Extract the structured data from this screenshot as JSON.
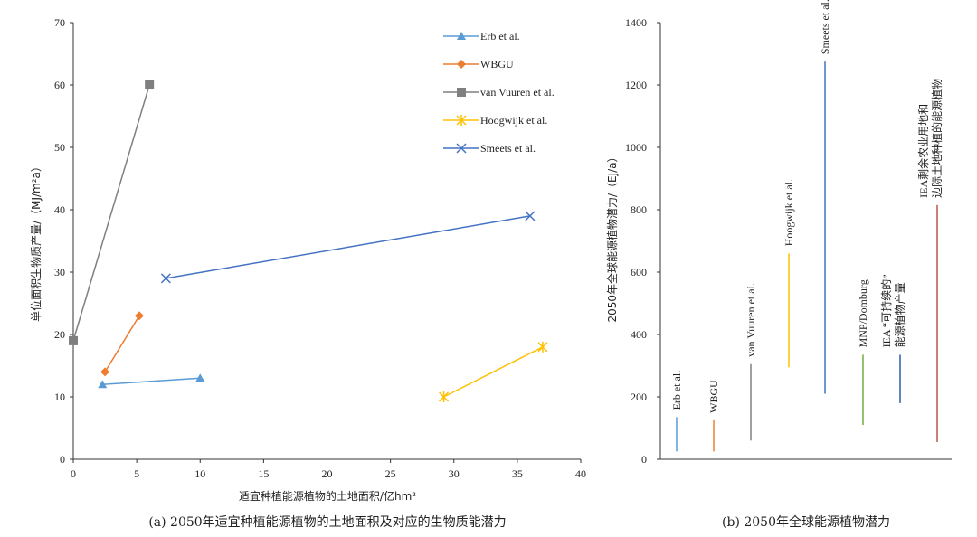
{
  "chart_data": [
    {
      "type": "line",
      "caption": "(a) 2050年适宜种植能源植物的土地面积及对应的生物质能潜力",
      "xlabel": "适宜种植能源植物的土地面积/亿hm²",
      "ylabel": "单位面积生物质产量/（MJ/m²a）",
      "xlim": [
        0,
        40
      ],
      "ylim": [
        0,
        70
      ],
      "xticks": [
        "0",
        "5",
        "10",
        "15",
        "20",
        "25",
        "30",
        "35",
        "40"
      ],
      "yticks": [
        "0",
        "10",
        "20",
        "30",
        "40",
        "50",
        "60",
        "70"
      ],
      "legend_position": "top-right",
      "series": [
        {
          "name": "Erb et al.",
          "color": "#5b9bd5",
          "marker": "triangle",
          "points": [
            [
              2.3,
              12
            ],
            [
              10,
              13
            ]
          ]
        },
        {
          "name": "WBGU",
          "color": "#ed7d31",
          "marker": "diamond",
          "points": [
            [
              2.5,
              14
            ],
            [
              5.2,
              23
            ]
          ]
        },
        {
          "name": "van Vuuren et al.",
          "color": "#7f7f7f",
          "marker": "square",
          "points": [
            [
              0,
              19
            ],
            [
              6,
              60
            ]
          ]
        },
        {
          "name": "Hoogwijk et al.",
          "color": "#ffc000",
          "marker": "asterisk",
          "points": [
            [
              29.2,
              10
            ],
            [
              37,
              18
            ]
          ]
        },
        {
          "name": "Smeets et al.",
          "color": "#4472c4",
          "marker": "x",
          "points": [
            [
              7.3,
              29
            ],
            [
              36,
              39
            ]
          ]
        }
      ]
    },
    {
      "type": "range",
      "caption": "(b) 2050年全球能源植物潜力",
      "ylabel": "2050年全球能源植物潜力/（EJ/a）",
      "ylim": [
        0,
        1400
      ],
      "yticks": [
        "0",
        "200",
        "400",
        "600",
        "800",
        "1000",
        "1200",
        "1400"
      ],
      "series": [
        {
          "name": "Erb et al.",
          "label_lines": [
            "Erb et al."
          ],
          "color": "#5b9bd5",
          "low": 25,
          "high": 135
        },
        {
          "name": "WBGU",
          "label_lines": [
            "WBGU"
          ],
          "color": "#ed7d31",
          "low": 25,
          "high": 125
        },
        {
          "name": "van Vuuren et al.",
          "label_lines": [
            "van Vuuren et al."
          ],
          "color": "#7f7f7f",
          "low": 60,
          "high": 305
        },
        {
          "name": "Hoogwijk et al.",
          "label_lines": [
            "Hoogwijk et al."
          ],
          "color": "#ffc000",
          "low": 295,
          "high": 660
        },
        {
          "name": "Smeets et al.",
          "label_lines": [
            "Smeets et al."
          ],
          "color": "#4472c4",
          "low": 210,
          "high": 1275
        },
        {
          "name": "MNP/Domburg",
          "label_lines": [
            "MNP/Domburg"
          ],
          "color": "#70ad47",
          "low": 110,
          "high": 335
        },
        {
          "name": "IEA “可持续的”能源植物产量",
          "label_lines": [
            "IEA “可持续的”",
            "能源植物产量"
          ],
          "color": "#2e5fa8",
          "low": 180,
          "high": 335
        },
        {
          "name": "IEA剩余农业用地和边际土地种植的能源植物",
          "label_lines": [
            "IEA剩余农业用地和",
            "边际土地种植的能源植物"
          ],
          "color": "#c0504d",
          "low": 55,
          "high": 815
        }
      ]
    }
  ]
}
